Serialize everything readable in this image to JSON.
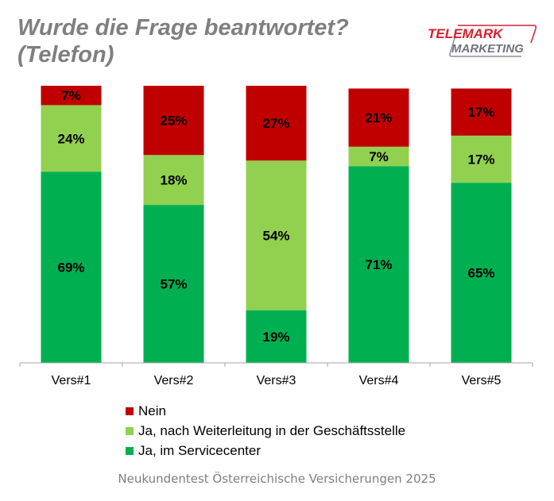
{
  "title_line1": "Wurde die Frage beantwortet?",
  "title_line2": "(Telefon)",
  "logo": {
    "line1": "TELEMARK",
    "line2": "MARKETING"
  },
  "footer": "Neukundentest Österreichische Versicherungen 2025",
  "chart_data": {
    "type": "bar",
    "stacked": true,
    "categories": [
      "Vers#1",
      "Vers#2",
      "Vers#3",
      "Vers#4",
      "Vers#5"
    ],
    "series": [
      {
        "name": "Ja, im Servicecenter",
        "color": "#00b050",
        "values": [
          69,
          57,
          19,
          71,
          65
        ]
      },
      {
        "name": "Ja, nach Weiterleitung in der Geschäftsstelle",
        "color": "#92d050",
        "values": [
          24,
          18,
          54,
          7,
          17
        ]
      },
      {
        "name": "Nein",
        "color": "#c00000",
        "values": [
          7,
          25,
          27,
          21,
          17
        ]
      }
    ],
    "ylim": [
      0,
      100
    ],
    "legend_position": "bottom",
    "legend_order": [
      "Nein",
      "Ja, nach Weiterleitung in der Geschäftsstelle",
      "Ja, im Servicecenter"
    ]
  }
}
